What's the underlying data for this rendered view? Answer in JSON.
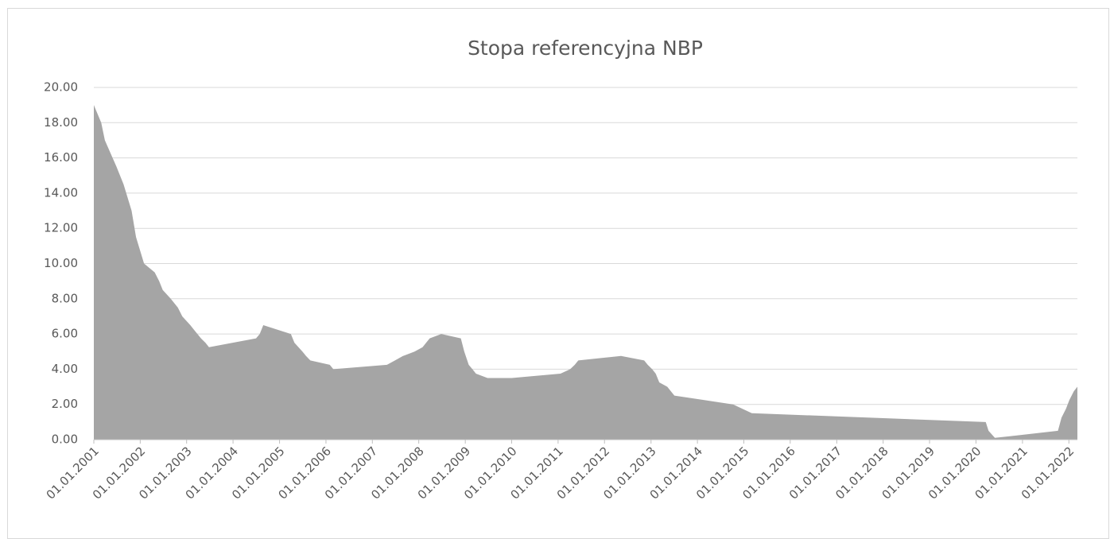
{
  "chart_data": {
    "type": "area",
    "title": "Stopa referencyjna NBP",
    "color": "#a5a5a5",
    "grid": true,
    "x": [
      "2001-01-01",
      "2001-02-28",
      "2001-03-29",
      "2001-06-28",
      "2001-08-23",
      "2001-10-25",
      "2001-11-29",
      "2002-01-31",
      "2002-04-25",
      "2002-05-30",
      "2002-06-27",
      "2002-08-29",
      "2002-10-24",
      "2002-11-28",
      "2003-01-30",
      "2003-02-27",
      "2003-03-27",
      "2003-04-24",
      "2003-05-29",
      "2003-06-26",
      "2004-06-30",
      "2004-07-29",
      "2004-08-26",
      "2005-03-31",
      "2005-04-28",
      "2005-06-30",
      "2005-07-28",
      "2005-08-31",
      "2006-01-31",
      "2006-02-28",
      "2007-04-26",
      "2007-06-28",
      "2007-08-30",
      "2007-11-29",
      "2008-01-31",
      "2008-02-28",
      "2008-03-27",
      "2008-06-26",
      "2008-11-27",
      "2008-12-24",
      "2009-01-28",
      "2009-02-26",
      "2009-03-26",
      "2009-06-25",
      "2010-01-01",
      "2011-01-20",
      "2011-04-06",
      "2011-05-12",
      "2011-06-09",
      "2012-05-10",
      "2012-11-08",
      "2012-12-06",
      "2013-01-10",
      "2013-02-07",
      "2013-03-07",
      "2013-05-09",
      "2013-06-06",
      "2013-07-04",
      "2014-10-09",
      "2015-03-05",
      "2020-03-18",
      "2020-04-09",
      "2020-05-29",
      "2021-10-07",
      "2021-11-04",
      "2021-12-09",
      "2022-01-05",
      "2022-02-09",
      "2022-03-09"
    ],
    "values": [
      19.0,
      18.0,
      17.0,
      15.5,
      14.5,
      13.0,
      11.5,
      10.0,
      9.5,
      9.0,
      8.5,
      8.0,
      7.5,
      7.0,
      6.5,
      6.25,
      6.0,
      5.75,
      5.5,
      5.25,
      5.75,
      6.0,
      6.5,
      6.0,
      5.5,
      5.0,
      4.75,
      4.5,
      4.25,
      4.0,
      4.25,
      4.5,
      4.75,
      5.0,
      5.25,
      5.5,
      5.75,
      6.0,
      5.75,
      5.0,
      4.25,
      4.0,
      3.75,
      3.5,
      3.5,
      3.75,
      4.0,
      4.25,
      4.5,
      4.75,
      4.5,
      4.25,
      4.0,
      3.75,
      3.25,
      3.0,
      2.75,
      2.5,
      2.0,
      1.5,
      1.0,
      0.5,
      0.1,
      0.5,
      1.25,
      1.75,
      2.25,
      2.75,
      3.0
    ],
    "xlim": [
      "2001-01-01",
      "2022-03-09"
    ],
    "xticks": [
      {
        "value": "2001-01-01",
        "label": "01.01.2001"
      },
      {
        "value": "2002-01-01",
        "label": "01.01.2002"
      },
      {
        "value": "2003-01-01",
        "label": "01.01.2003"
      },
      {
        "value": "2004-01-01",
        "label": "01.01.2004"
      },
      {
        "value": "2005-01-01",
        "label": "01.01.2005"
      },
      {
        "value": "2006-01-01",
        "label": "01.01.2006"
      },
      {
        "value": "2007-01-01",
        "label": "01.01.2007"
      },
      {
        "value": "2008-01-01",
        "label": "01.01.2008"
      },
      {
        "value": "2009-01-01",
        "label": "01.01.2009"
      },
      {
        "value": "2010-01-01",
        "label": "01.01.2010"
      },
      {
        "value": "2011-01-01",
        "label": "01.01.2011"
      },
      {
        "value": "2012-01-01",
        "label": "01.01.2012"
      },
      {
        "value": "2013-01-01",
        "label": "01.01.2013"
      },
      {
        "value": "2014-01-01",
        "label": "01.01.2014"
      },
      {
        "value": "2015-01-01",
        "label": "01.01.2015"
      },
      {
        "value": "2016-01-01",
        "label": "01.01.2016"
      },
      {
        "value": "2017-01-01",
        "label": "01.01.2017"
      },
      {
        "value": "2018-01-01",
        "label": "01.01.2018"
      },
      {
        "value": "2019-01-01",
        "label": "01.01.2019"
      },
      {
        "value": "2020-01-01",
        "label": "01.01.2020"
      },
      {
        "value": "2021-01-01",
        "label": "01.01.2021"
      },
      {
        "value": "2022-01-01",
        "label": "01.01.2022"
      }
    ],
    "ylim": [
      0,
      20
    ],
    "yticks": [
      {
        "value": 0,
        "label": "0.00"
      },
      {
        "value": 2,
        "label": "2.00"
      },
      {
        "value": 4,
        "label": "4.00"
      },
      {
        "value": 6,
        "label": "6.00"
      },
      {
        "value": 8,
        "label": "8.00"
      },
      {
        "value": 10,
        "label": "10.00"
      },
      {
        "value": 12,
        "label": "12.00"
      },
      {
        "value": 14,
        "label": "14.00"
      },
      {
        "value": 16,
        "label": "16.00"
      },
      {
        "value": 18,
        "label": "18.00"
      },
      {
        "value": 20,
        "label": "20.00"
      }
    ]
  }
}
